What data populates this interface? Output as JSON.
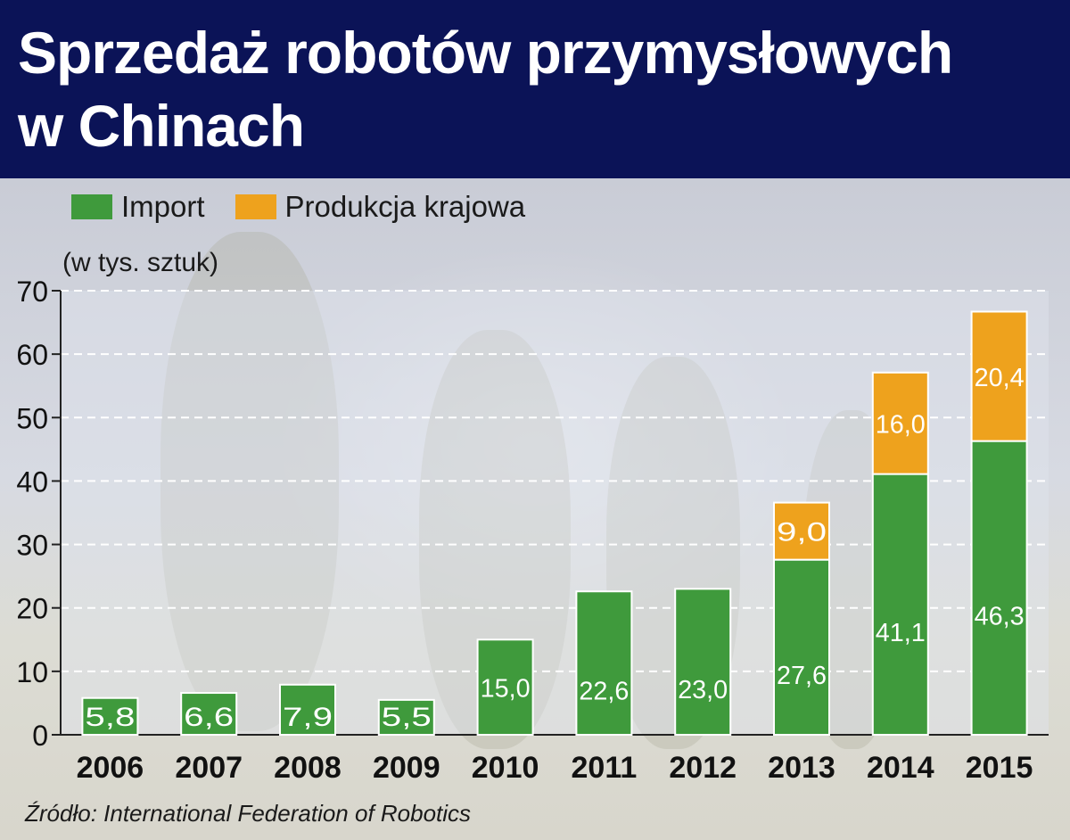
{
  "title_line1": "Sprzedaż robotów przymysłowych",
  "title_line2": "w Chinach",
  "unit_label": "(w tys. sztuk)",
  "source": "Źródło: International Federation of Robotics",
  "colors": {
    "header": "#0b1357",
    "import": "#3f9a3c",
    "domestic": "#eea21d"
  },
  "legend": [
    {
      "label": "Import",
      "color": "#3f9a3c"
    },
    {
      "label": "Produkcja krajowa",
      "color": "#eea21d"
    }
  ],
  "chart_data": {
    "type": "bar",
    "stacked": true,
    "categories": [
      "2006",
      "2007",
      "2008",
      "2009",
      "2010",
      "2011",
      "2012",
      "2013",
      "2014",
      "2015"
    ],
    "series": [
      {
        "name": "Import",
        "values": [
          5.8,
          6.6,
          7.9,
          5.5,
          15.0,
          22.6,
          23.0,
          27.6,
          41.1,
          46.3
        ],
        "labels": [
          "5,8",
          "6,6",
          "7,9",
          "5,5",
          "15,0",
          "22,6",
          "23,0",
          "27,6",
          "41,1",
          "46,3"
        ]
      },
      {
        "name": "Produkcja krajowa",
        "values": [
          null,
          null,
          null,
          null,
          null,
          null,
          null,
          9.0,
          16.0,
          20.4
        ],
        "labels": [
          null,
          null,
          null,
          null,
          null,
          null,
          null,
          "9,0",
          "16,0",
          "20,4"
        ]
      }
    ],
    "ylim": [
      0,
      70
    ],
    "yticks": [
      0,
      10,
      20,
      30,
      40,
      50,
      60,
      70
    ],
    "grid": true,
    "legend_position": "top-left"
  }
}
